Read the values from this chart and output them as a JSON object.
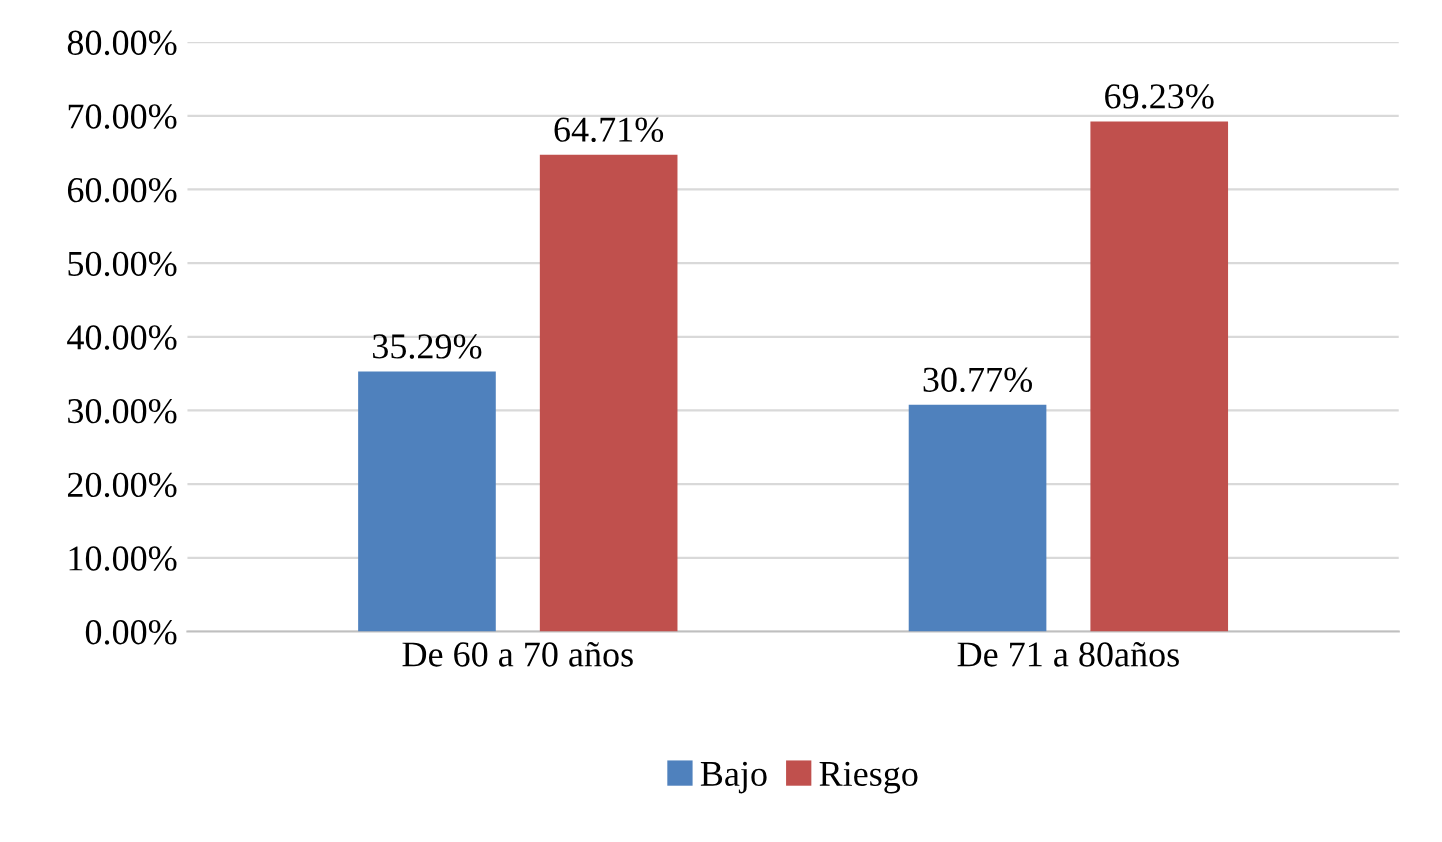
{
  "chart_data": {
    "type": "bar",
    "categories": [
      "De 60 a 70 años",
      "De 71 a 80años"
    ],
    "series": [
      {
        "name": "Bajo",
        "color": "#4f81bd",
        "values": [
          35.29,
          30.77
        ],
        "value_labels": [
          "35.29%",
          "30.77%"
        ]
      },
      {
        "name": "Riesgo",
        "color": "#c0504d",
        "values": [
          64.71,
          69.23
        ],
        "value_labels": [
          "64.71%",
          "69.23%"
        ]
      }
    ],
    "ylim": [
      0,
      80
    ],
    "yticks": [
      {
        "value": 0,
        "label": "0.00%"
      },
      {
        "value": 10,
        "label": "10.00%"
      },
      {
        "value": 20,
        "label": "20.00%"
      },
      {
        "value": 30,
        "label": "30.00%"
      },
      {
        "value": 40,
        "label": "40.00%"
      },
      {
        "value": 50,
        "label": "50.00%"
      },
      {
        "value": 60,
        "label": "60.00%"
      },
      {
        "value": 70,
        "label": "70.00%"
      },
      {
        "value": 80,
        "label": "80.00%"
      }
    ],
    "grid": "y",
    "legend": "bottom"
  }
}
